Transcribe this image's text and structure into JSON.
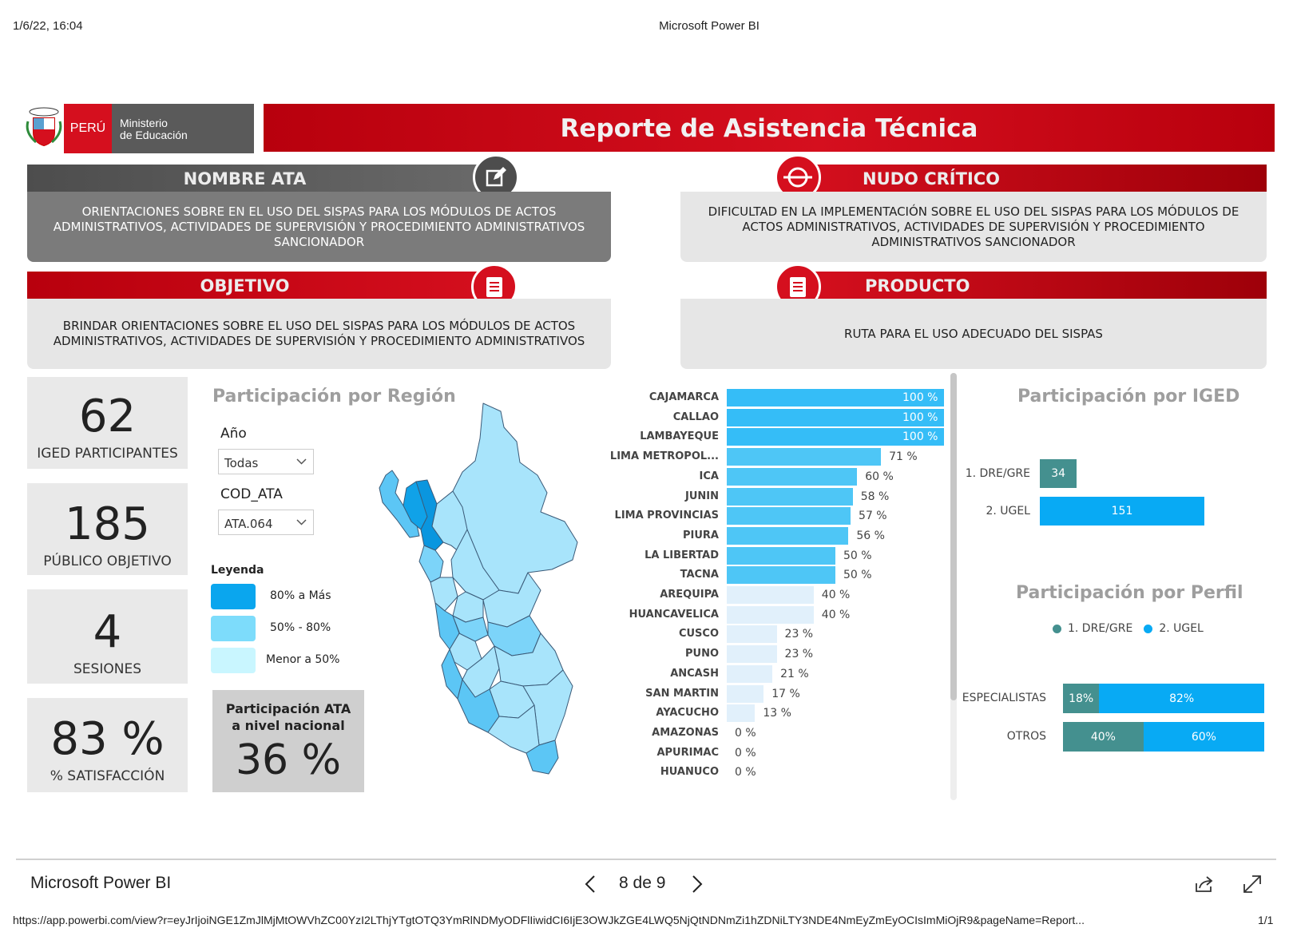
{
  "print_header": {
    "datetime": "1/6/22, 16:04",
    "title": "Microsoft Power BI"
  },
  "print_footer": {
    "url": "https://app.powerbi.com/view?r=eyJrIjoiNGE1ZmJlMjMtOWVhZC00YzI2LThjYTgtOTQ3YmRlNDMyODFlIiwidCI6IjE3OWJkZGE4LWQ5NjQtNDNmZi1hZDNiLTY3NDE4NmEyZmEyOCIsImMiOjR9&pageName=Report...",
    "page": "1/1"
  },
  "logo": {
    "country": "PERÚ",
    "ministry_line1": "Ministerio",
    "ministry_line2": "de Educación"
  },
  "report_title": "Reporte de Asistencia Técnica",
  "nombre_ata": {
    "header": "NOMBRE ATA",
    "text": "ORIENTACIONES SOBRE EN EL USO DEL SISPAS PARA LOS MÓDULOS DE ACTOS ADMINISTRATIVOS, ACTIVIDADES DE SUPERVISIÓN Y PROCEDIMIENTO ADMINISTRATIVOS SANCIONADOR"
  },
  "nudo_critico": {
    "header": "NUDO CRÍTICO",
    "text": "DIFICULTAD EN LA IMPLEMENTACIÓN SOBRE EL USO DEL SISPAS PARA LOS MÓDULOS DE ACTOS ADMINISTRATIVOS, ACTIVIDADES DE SUPERVISIÓN Y PROCEDIMIENTO ADMINISTRATIVOS SANCIONADOR"
  },
  "objetivo": {
    "header": "OBJETIVO",
    "text": "BRINDAR ORIENTACIONES SOBRE EL USO DEL SISPAS PARA LOS MÓDULOS DE ACTOS ADMINISTRATIVOS, ACTIVIDADES DE SUPERVISIÓN Y PROCEDIMIENTO ADMINISTRATIVOS"
  },
  "producto": {
    "header": "PRODUCTO",
    "text": "RUTA PARA EL USO ADECUADO DEL SISPAS"
  },
  "kpis": [
    {
      "value": "62",
      "label": "IGED PARTICIPANTES"
    },
    {
      "value": "185",
      "label": "PÚBLICO OBJETIVO"
    },
    {
      "value": "4",
      "label": "SESIONES"
    },
    {
      "value": "83 %",
      "label": "% SATISFACCIÓN"
    }
  ],
  "region_section": {
    "title": "Participación por Región",
    "slicers": [
      {
        "label": "Año",
        "value": "Todas"
      },
      {
        "label": "COD_ATA",
        "value": "ATA.064"
      }
    ],
    "legend_title": "Leyenda",
    "legend": [
      {
        "label": "80% a Más",
        "color": "#0aa6ee"
      },
      {
        "label": "50% - 80%",
        "color": "#7ddcfb"
      },
      {
        "label": "Menor a 50%",
        "color": "#c9f6ff"
      }
    ],
    "national": {
      "title_line1": "Participación ATA",
      "title_line2": "a nivel nacional",
      "value": "36 %"
    }
  },
  "chart_data": [
    {
      "type": "bar",
      "orientation": "horizontal",
      "categories": [
        "CAJAMARCA",
        "CALLAO",
        "LAMBAYEQUE",
        "LIMA METROPOL...",
        "ICA",
        "JUNIN",
        "LIMA PROVINCIAS",
        "PIURA",
        "LA LIBERTAD",
        "TACNA",
        "AREQUIPA",
        "HUANCAVELICA",
        "CUSCO",
        "PUNO",
        "ANCASH",
        "SAN MARTIN",
        "AYACUCHO",
        "AMAZONAS",
        "APURIMAC",
        "HUANUCO"
      ],
      "values": [
        100,
        100,
        100,
        71,
        60,
        58,
        57,
        56,
        50,
        50,
        40,
        40,
        23,
        23,
        21,
        17,
        13,
        0,
        0,
        0
      ],
      "value_labels": [
        "100 %",
        "100 %",
        "100 %",
        "71 %",
        "60 %",
        "58 %",
        "57 %",
        "56 %",
        "50 %",
        "50 %",
        "40 %",
        "40 %",
        "23 %",
        "23 %",
        "21 %",
        "17 %",
        "13 %",
        "0 %",
        "0 %",
        "0 %"
      ],
      "xlim": [
        0,
        100
      ],
      "colors": {
        "high": "#35bdf7",
        "mid": "#4ec6f6",
        "low": "#e1f0fb"
      }
    },
    {
      "type": "bar",
      "orientation": "horizontal",
      "title": "Participación por IGED",
      "categories": [
        "1. DRE/GRE",
        "2. UGEL"
      ],
      "values": [
        34,
        151
      ],
      "colors": [
        "#44908f",
        "#08aaf4"
      ]
    },
    {
      "type": "bar",
      "orientation": "horizontal",
      "stacked": "100%",
      "title": "Participación por Perfil",
      "categories": [
        "ESPECIALISTAS",
        "OTROS"
      ],
      "series": [
        {
          "name": "1. DRE/GRE",
          "values": [
            18,
            40
          ],
          "labels": [
            "18%",
            "40%"
          ],
          "color": "#44908f"
        },
        {
          "name": "2. UGEL",
          "values": [
            82,
            60
          ],
          "labels": [
            "82%",
            "60%"
          ],
          "color": "#08aaf4"
        }
      ]
    }
  ],
  "viewer": {
    "app_name": "Microsoft Power BI",
    "page_indicator": "8 de 9"
  }
}
